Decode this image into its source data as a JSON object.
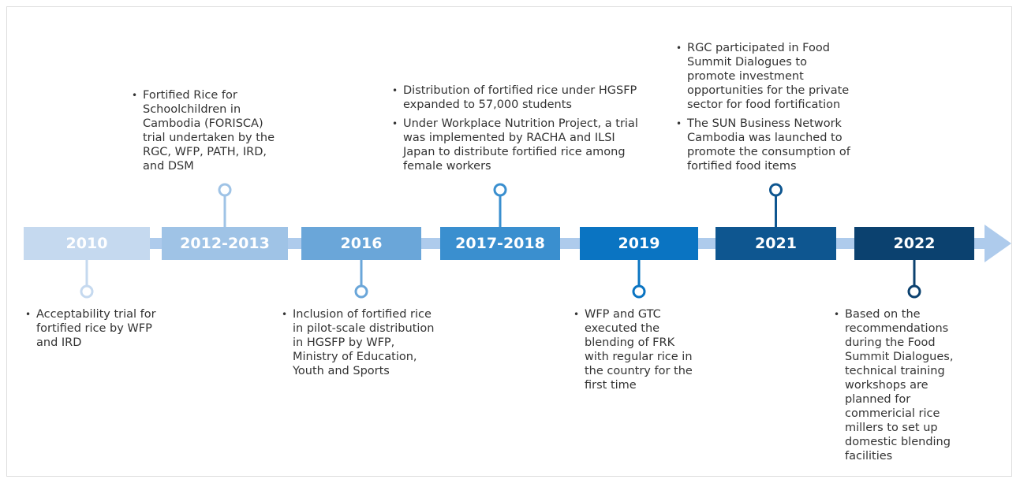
{
  "events": [
    {
      "year": "2010",
      "items": [
        "Acceptability trial for fortified rice by WFP and IRD"
      ]
    },
    {
      "year": "2012-2013",
      "items": [
        "Fortified Rice for Schoolchildren in Cambodia (FORISCA) trial undertaken by the RGC, WFP, PATH, IRD, and DSM"
      ]
    },
    {
      "year": "2016",
      "items": [
        "Inclusion of fortified rice in pilot-scale distribution in HGSFP by WFP, Ministry of Education, Youth and Sports"
      ]
    },
    {
      "year": "2017-2018",
      "items": [
        "Distribution of fortified rice under HGSFP expanded to 57,000 students",
        "Under Workplace Nutrition Project, a trial was implemented by RACHA and ILSI Japan to distribute fortified rice among female workers"
      ]
    },
    {
      "year": "2019",
      "items": [
        "WFP and GTC executed the blending of FRK with regular rice in the country for the first time"
      ]
    },
    {
      "year": "2021",
      "items": [
        "RGC participated in Food Summit Dialogues to promote investment opportunities for the private sector for food fortification",
        "The SUN Business Network Cambodia was launched to promote the consumption of fortified food items"
      ]
    },
    {
      "year": "2022",
      "items": [
        "Based on the recommendations during the Food Summit Dialogues, technical training workshops are planned for commericial rice millers to set up domestic blending facilities"
      ]
    }
  ]
}
